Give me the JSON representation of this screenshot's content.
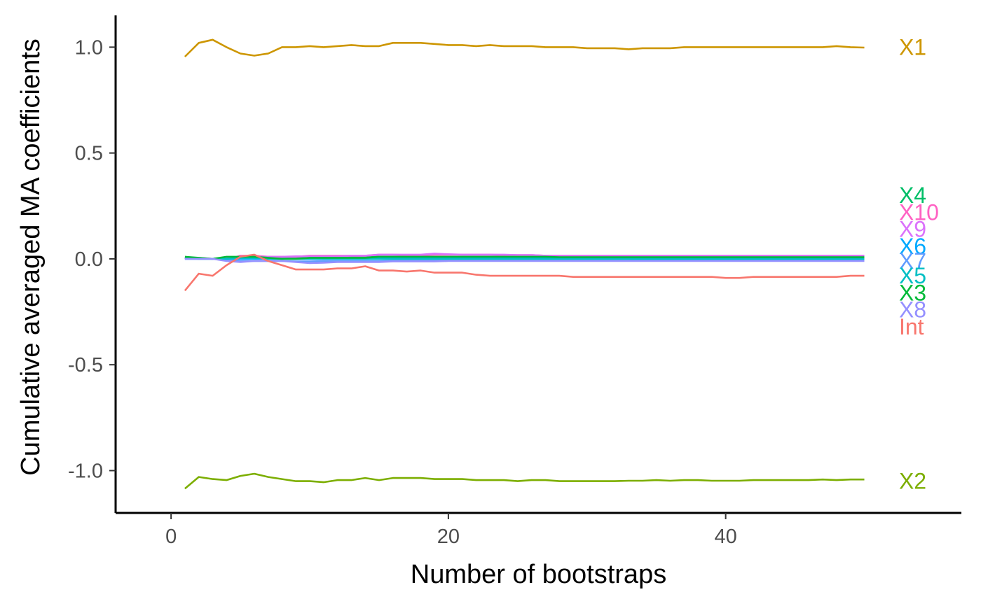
{
  "chart_data": {
    "type": "line",
    "xlabel": "Number of bootstraps",
    "ylabel": "Cumulative averaged MA coefficients",
    "xlim": [
      -4,
      57
    ],
    "ylim": [
      -1.2,
      1.15
    ],
    "x_ticks": [
      {
        "value": 0,
        "label": "0"
      },
      {
        "value": 20,
        "label": "20"
      },
      {
        "value": 40,
        "label": "40"
      }
    ],
    "y_ticks": [
      {
        "value": 1.0,
        "label": "1.0"
      },
      {
        "value": 0.5,
        "label": "0.5"
      },
      {
        "value": 0.0,
        "label": "0.0"
      },
      {
        "value": -0.5,
        "label": "-0.5"
      },
      {
        "value": -1.0,
        "label": "-1.0"
      }
    ],
    "grid": false,
    "legend": "none",
    "x": [
      1,
      2,
      3,
      4,
      5,
      6,
      7,
      8,
      9,
      10,
      11,
      12,
      13,
      14,
      15,
      16,
      17,
      18,
      19,
      20,
      21,
      22,
      23,
      24,
      25,
      26,
      27,
      28,
      29,
      30,
      31,
      32,
      33,
      34,
      35,
      36,
      37,
      38,
      39,
      40,
      41,
      42,
      43,
      44,
      45,
      46,
      47,
      48,
      49,
      50
    ],
    "series": [
      {
        "name": "X1",
        "color": "#CD9600",
        "label_y": 1.0,
        "values": [
          0.955,
          1.02,
          1.035,
          1.0,
          0.97,
          0.96,
          0.97,
          1.0,
          1.0,
          1.005,
          1.0,
          1.005,
          1.01,
          1.005,
          1.005,
          1.02,
          1.02,
          1.02,
          1.015,
          1.01,
          1.01,
          1.005,
          1.01,
          1.005,
          1.005,
          1.005,
          1.0,
          1.0,
          1.0,
          0.995,
          0.995,
          0.995,
          0.99,
          0.995,
          0.995,
          0.995,
          1.0,
          1.0,
          1.0,
          1.0,
          1.0,
          1.0,
          1.0,
          1.0,
          1.0,
          1.0,
          1.0,
          1.005,
          1.0,
          0.998
        ]
      },
      {
        "name": "X2",
        "color": "#7CAE00",
        "label_y": -1.05,
        "values": [
          -1.085,
          -1.03,
          -1.04,
          -1.045,
          -1.025,
          -1.015,
          -1.03,
          -1.04,
          -1.05,
          -1.05,
          -1.055,
          -1.045,
          -1.045,
          -1.035,
          -1.045,
          -1.035,
          -1.035,
          -1.035,
          -1.04,
          -1.04,
          -1.04,
          -1.045,
          -1.045,
          -1.045,
          -1.05,
          -1.045,
          -1.045,
          -1.05,
          -1.05,
          -1.05,
          -1.05,
          -1.05,
          -1.048,
          -1.048,
          -1.045,
          -1.048,
          -1.045,
          -1.045,
          -1.048,
          -1.048,
          -1.048,
          -1.045,
          -1.045,
          -1.045,
          -1.045,
          -1.045,
          -1.042,
          -1.045,
          -1.042,
          -1.042
        ]
      },
      {
        "name": "Int",
        "color": "#F8766D",
        "label_y": -0.32,
        "values": [
          -0.15,
          -0.07,
          -0.08,
          -0.03,
          0.01,
          0.02,
          -0.01,
          -0.03,
          -0.05,
          -0.05,
          -0.05,
          -0.045,
          -0.045,
          -0.035,
          -0.055,
          -0.055,
          -0.06,
          -0.055,
          -0.065,
          -0.065,
          -0.065,
          -0.075,
          -0.08,
          -0.08,
          -0.08,
          -0.08,
          -0.08,
          -0.08,
          -0.085,
          -0.085,
          -0.085,
          -0.085,
          -0.085,
          -0.085,
          -0.085,
          -0.085,
          -0.085,
          -0.085,
          -0.085,
          -0.09,
          -0.09,
          -0.085,
          -0.085,
          -0.085,
          -0.085,
          -0.085,
          -0.085,
          -0.085,
          -0.08,
          -0.08
        ]
      },
      {
        "name": "X4",
        "color": "#00BE67",
        "label_y": 0.3,
        "values": [
          0.005,
          0.0,
          0.0,
          0.005,
          0.01,
          0.01,
          0.01,
          0.008,
          0.008,
          0.01,
          0.01,
          0.01,
          0.01,
          0.01,
          0.01,
          0.01,
          0.01,
          0.01,
          0.01,
          0.01,
          0.01,
          0.01,
          0.01,
          0.01,
          0.01,
          0.01,
          0.01,
          0.01,
          0.01,
          0.01,
          0.01,
          0.01,
          0.01,
          0.01,
          0.01,
          0.01,
          0.01,
          0.01,
          0.01,
          0.01,
          0.01,
          0.01,
          0.01,
          0.01,
          0.01,
          0.01,
          0.01,
          0.01,
          0.01,
          0.01
        ]
      },
      {
        "name": "X10",
        "color": "#FF61C3",
        "label_y": 0.22,
        "values": [
          0.005,
          0.005,
          0.0,
          -0.005,
          0.015,
          0.015,
          0.01,
          0.01,
          0.01,
          0.015,
          0.015,
          0.015,
          0.015,
          0.015,
          0.02,
          0.02,
          0.018,
          0.018,
          0.02,
          0.02,
          0.02,
          0.02,
          0.02,
          0.018,
          0.018,
          0.018,
          0.015,
          0.015,
          0.015,
          0.015,
          0.015,
          0.015,
          0.015,
          0.015,
          0.015,
          0.015,
          0.015,
          0.015,
          0.015,
          0.015,
          0.015,
          0.015,
          0.015,
          0.015,
          0.015,
          0.015,
          0.015,
          0.015,
          0.015,
          0.015
        ]
      },
      {
        "name": "X9",
        "color": "#DB72FB",
        "label_y": 0.14,
        "values": [
          0.005,
          0.0,
          0.0,
          0.005,
          0.01,
          0.01,
          0.01,
          0.01,
          0.012,
          0.012,
          0.012,
          0.012,
          0.015,
          0.015,
          0.02,
          0.02,
          0.02,
          0.02,
          0.025,
          0.022,
          0.02,
          0.02,
          0.02,
          0.02,
          0.018,
          0.018,
          0.015,
          0.015,
          0.015,
          0.015,
          0.015,
          0.015,
          0.015,
          0.015,
          0.015,
          0.015,
          0.015,
          0.015,
          0.015,
          0.015,
          0.015,
          0.015,
          0.015,
          0.015,
          0.015,
          0.015,
          0.015,
          0.015,
          0.015,
          0.015
        ]
      },
      {
        "name": "X6",
        "color": "#00A9FF",
        "label_y": 0.06,
        "values": [
          0.0,
          0.0,
          0.0,
          0.0,
          0.0,
          0.0,
          0.0,
          0.0,
          0.0,
          0.0,
          0.0,
          0.0,
          0.0,
          0.0,
          0.002,
          0.002,
          0.002,
          0.002,
          0.002,
          0.002,
          0.002,
          0.002,
          0.002,
          0.002,
          0.002,
          0.002,
          0.002,
          0.002,
          0.002,
          0.002,
          0.002,
          0.002,
          0.002,
          0.002,
          0.002,
          0.002,
          0.002,
          0.002,
          0.002,
          0.002,
          0.002,
          0.002,
          0.002,
          0.002,
          0.002,
          0.002,
          0.002,
          0.002,
          0.002,
          0.002
        ]
      },
      {
        "name": "X7",
        "color": "#619CFF",
        "label_y": -0.01,
        "values": [
          0.0,
          0.0,
          0.0,
          -0.005,
          -0.01,
          -0.01,
          -0.01,
          -0.01,
          -0.012,
          -0.012,
          -0.01,
          -0.01,
          -0.01,
          -0.01,
          -0.01,
          -0.008,
          -0.008,
          -0.008,
          -0.008,
          -0.008,
          -0.008,
          -0.008,
          -0.008,
          -0.008,
          -0.008,
          -0.008,
          -0.008,
          -0.008,
          -0.008,
          -0.008,
          -0.008,
          -0.008,
          -0.008,
          -0.006,
          -0.006,
          -0.006,
          -0.006,
          -0.006,
          -0.006,
          -0.006,
          -0.006,
          -0.006,
          -0.006,
          -0.006,
          -0.006,
          -0.006,
          -0.006,
          -0.006,
          -0.006,
          -0.006
        ]
      },
      {
        "name": "X5",
        "color": "#00BFC4",
        "label_y": -0.08,
        "values": [
          0.005,
          0.0,
          0.0,
          0.0,
          0.005,
          0.005,
          0.0,
          0.0,
          0.0,
          0.0,
          0.0,
          0.0,
          0.0,
          0.0,
          0.0,
          0.0,
          0.0,
          0.0,
          0.0,
          0.0,
          0.0,
          0.0,
          0.0,
          0.0,
          0.0,
          0.0,
          0.0,
          0.0,
          0.0,
          0.0,
          0.0,
          0.0,
          0.0,
          0.0,
          0.0,
          0.0,
          0.0,
          0.0,
          0.0,
          0.0,
          0.0,
          0.0,
          0.0,
          0.0,
          0.0,
          0.0,
          0.0,
          0.0,
          0.0,
          0.0
        ]
      },
      {
        "name": "X3",
        "color": "#00BA38",
        "label_y": -0.16,
        "values": [
          0.01,
          0.005,
          0.0,
          0.01,
          0.01,
          0.01,
          0.005,
          0.0,
          0.0,
          0.005,
          0.005,
          0.005,
          0.005,
          0.005,
          0.01,
          0.01,
          0.01,
          0.01,
          0.01,
          0.01,
          0.01,
          0.01,
          0.01,
          0.01,
          0.01,
          0.01,
          0.01,
          0.008,
          0.008,
          0.008,
          0.008,
          0.008,
          0.008,
          0.008,
          0.008,
          0.008,
          0.008,
          0.008,
          0.008,
          0.008,
          0.008,
          0.008,
          0.008,
          0.008,
          0.008,
          0.008,
          0.008,
          0.008,
          0.008,
          0.008
        ]
      },
      {
        "name": "X8",
        "color": "#9590FF",
        "label_y": -0.24,
        "values": [
          0.0,
          0.0,
          0.0,
          -0.01,
          -0.015,
          -0.01,
          -0.01,
          -0.01,
          -0.015,
          -0.02,
          -0.018,
          -0.015,
          -0.015,
          -0.015,
          -0.015,
          -0.012,
          -0.012,
          -0.012,
          -0.012,
          -0.01,
          -0.01,
          -0.01,
          -0.01,
          -0.01,
          -0.01,
          -0.01,
          -0.01,
          -0.01,
          -0.01,
          -0.01,
          -0.01,
          -0.01,
          -0.01,
          -0.01,
          -0.01,
          -0.01,
          -0.01,
          -0.01,
          -0.01,
          -0.01,
          -0.01,
          -0.01,
          -0.01,
          -0.01,
          -0.01,
          -0.01,
          -0.01,
          -0.01,
          -0.01,
          -0.01
        ]
      }
    ],
    "label_x": 52.5
  }
}
